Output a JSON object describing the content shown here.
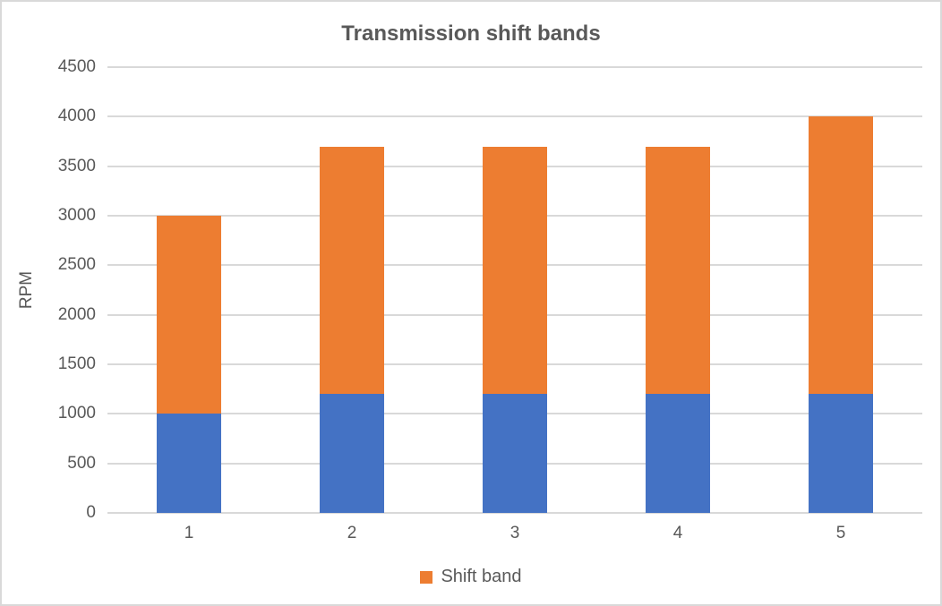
{
  "chart_data": {
    "type": "bar",
    "stacked": true,
    "title": "Transmission shift bands",
    "xlabel": "",
    "ylabel": "RPM",
    "categories": [
      "1",
      "2",
      "3",
      "4",
      "5"
    ],
    "series": [
      {
        "name": "",
        "color": "#4472C4",
        "values": [
          1000,
          1200,
          1200,
          1200,
          1200
        ]
      },
      {
        "name": "Shift band",
        "color": "#ED7D31",
        "values": [
          2000,
          2500,
          2500,
          2500,
          2800
        ]
      }
    ],
    "stack_totals": [
      3000,
      3700,
      3700,
      3700,
      4000
    ],
    "ylim": [
      0,
      4500
    ],
    "ytick_step": 500,
    "grid": true,
    "legend_position": "bottom",
    "legend": [
      {
        "label": "Shift band",
        "color": "#ED7D31"
      }
    ]
  },
  "colors": {
    "grid": "#D9D9D9",
    "frame_border": "#D9D9D9",
    "text": "#595959",
    "background": "#FFFFFF"
  }
}
